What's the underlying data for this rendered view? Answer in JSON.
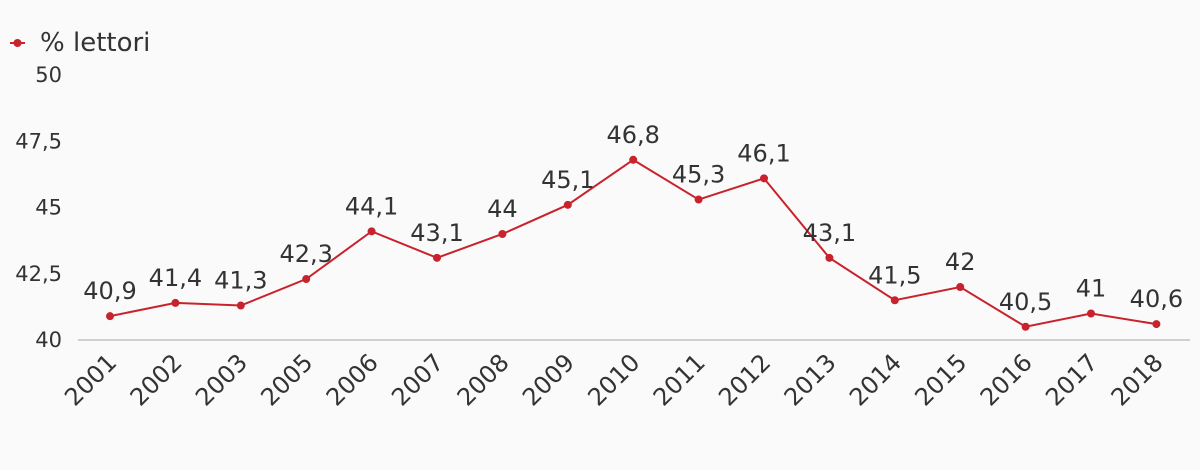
{
  "legend": {
    "label": "% lettori"
  },
  "colors": {
    "series": "#c8232c",
    "axis": "#d0d0d0",
    "text": "#333333",
    "background": "#fafafa"
  },
  "chart_data": {
    "type": "line",
    "categories": [
      "2001",
      "2002",
      "2003",
      "2005",
      "2006",
      "2007",
      "2008",
      "2009",
      "2010",
      "2011",
      "2012",
      "2013",
      "2014",
      "2015",
      "2016",
      "2017",
      "2018"
    ],
    "series": [
      {
        "name": "% lettori",
        "values": [
          40.9,
          41.4,
          41.3,
          42.3,
          44.1,
          43.1,
          44.0,
          45.1,
          46.8,
          45.3,
          46.1,
          43.1,
          41.5,
          42.0,
          40.5,
          41.0,
          40.6
        ],
        "labels": [
          "40,9",
          "41,4",
          "41,3",
          "42,3",
          "44,1",
          "43,1",
          "44",
          "45,1",
          "46,8",
          "45,3",
          "46,1",
          "43,1",
          "41,5",
          "42",
          "40,5",
          "41",
          "40,6"
        ]
      }
    ],
    "yticks": [
      40,
      42.5,
      45,
      47.5,
      50
    ],
    "ytick_labels": [
      "40",
      "42,5",
      "45",
      "47,5",
      "50"
    ],
    "ylim": [
      40,
      50
    ],
    "grid": false,
    "legend_position": "top-left"
  }
}
